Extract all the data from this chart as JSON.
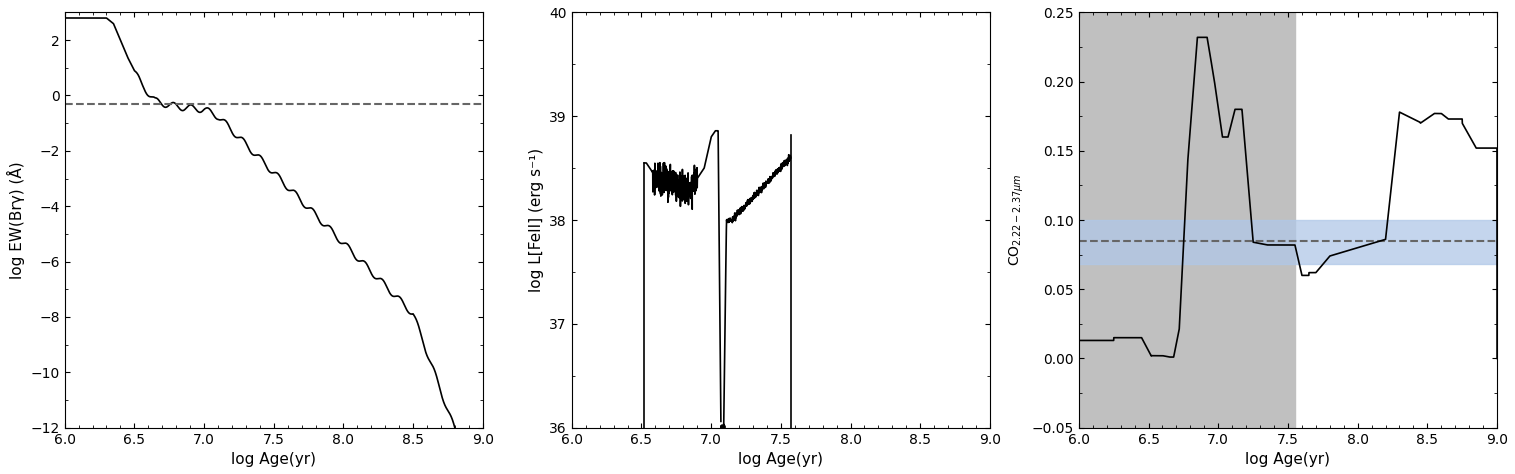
{
  "panel1": {
    "xlim": [
      6.0,
      9.0
    ],
    "ylim": [
      -12,
      3
    ],
    "xlabel": "log Age(yr)",
    "ylabel": "log EW(Brγ) (Å)",
    "dashed_y": -0.3,
    "yticks": [
      2,
      0,
      -2,
      -4,
      -6,
      -8,
      -10,
      -12
    ],
    "xticks": [
      6.0,
      6.5,
      7.0,
      7.5,
      8.0,
      8.5,
      9.0
    ]
  },
  "panel2": {
    "xlim": [
      6.0,
      9.0
    ],
    "ylim": [
      36,
      40
    ],
    "xlabel": "log Age(yr)",
    "ylabel": "log L[FeII] (erg s⁻¹)",
    "yticks": [
      36,
      37,
      38,
      39,
      40
    ],
    "xticks": [
      6.0,
      6.5,
      7.0,
      7.5,
      8.0,
      8.5,
      9.0
    ],
    "seg1_xstart": 6.52,
    "seg1_xend": 7.07,
    "seg2_xstart": 7.07,
    "seg2_xend": 7.57
  },
  "panel3": {
    "xlim": [
      6.0,
      9.0
    ],
    "ylim": [
      -0.05,
      0.25
    ],
    "xlabel": "log Age(yr)",
    "ylabel": "CO$_{2.22-2.37\\mu m}$",
    "dashed_y": 0.085,
    "blue_band_low": 0.068,
    "blue_band_high": 0.1,
    "gray_xmin": 6.0,
    "gray_xmax": 7.55,
    "yticks": [
      -0.05,
      0.0,
      0.05,
      0.1,
      0.15,
      0.2,
      0.25
    ],
    "xticks": [
      6.0,
      6.5,
      7.0,
      7.5,
      8.0,
      8.5,
      9.0
    ]
  },
  "linecolor": "#000000",
  "dashcolor": "#666666",
  "gray_color": "#c0c0c0",
  "blue_color": "#b0c8e8",
  "linewidth": 1.2,
  "figsize": [
    15.15,
    4.74
  ],
  "dpi": 100
}
